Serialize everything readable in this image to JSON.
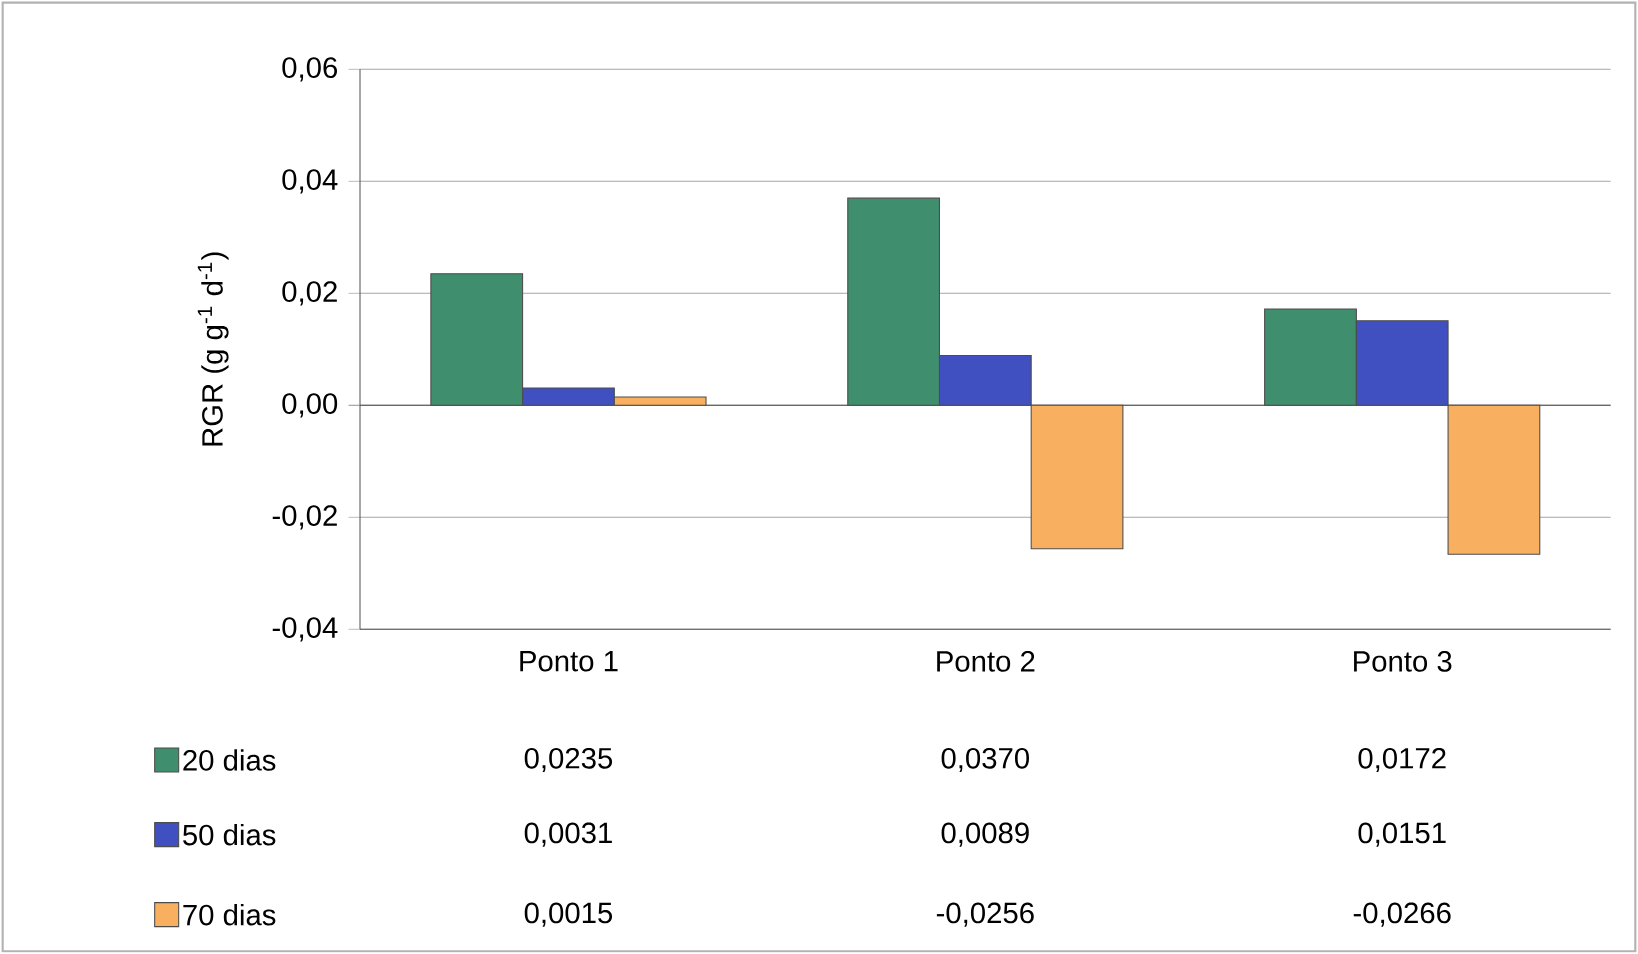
{
  "chart_data": {
    "type": "bar",
    "ylabel": "RGR (g g$^{-1}$ d$^{-1}$)",
    "categories": [
      "Ponto 1",
      "Ponto 2",
      "Ponto 3"
    ],
    "series": [
      {
        "name": "20 dias",
        "color": "#3f8f6f",
        "values": [
          0.0235,
          0.037,
          0.0172
        ],
        "value_labels": [
          "0,0235",
          "0,0370",
          "0,0172"
        ]
      },
      {
        "name": "50 dias",
        "color": "#4050c0",
        "values": [
          0.0031,
          0.0089,
          0.0151
        ],
        "value_labels": [
          "0,0031",
          "0,0089",
          "0,0151"
        ]
      },
      {
        "name": "70 dias",
        "color": "#f8b060",
        "values": [
          0.0015,
          -0.0256,
          -0.0266
        ],
        "value_labels": [
          "0,0015",
          "-0,0256",
          "-0,0266"
        ]
      }
    ],
    "ylim": [
      -0.04,
      0.06
    ],
    "yticks": [
      {
        "value": -0.04,
        "label": "-0,04"
      },
      {
        "value": -0.02,
        "label": "-0,02"
      },
      {
        "value": 0,
        "label": "0,00"
      },
      {
        "value": 0.02,
        "label": "0,02"
      },
      {
        "value": 0.04,
        "label": "0,04"
      },
      {
        "value": 0.06,
        "label": "0,06"
      }
    ],
    "grid": "y",
    "legend": "bottom"
  }
}
